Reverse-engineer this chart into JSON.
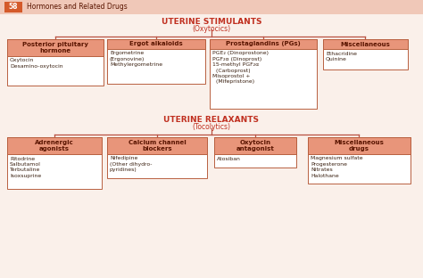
{
  "header_num": "58",
  "header_text": "Hormones and Related Drugs",
  "header_bg": "#f0c8b8",
  "header_num_bg": "#d45a2a",
  "bg_color": "#faf0ea",
  "box_header_bg": "#e8957a",
  "box_border": "#b86040",
  "line_color": "#b85040",
  "text_dark": "#5a1500",
  "text_body": "#3a2010",
  "stimulants_title": "UTERINE STIMULANTS",
  "stimulants_sub": "(Oxytocics)",
  "relaxants_title": "UTERINE RELAXANTS",
  "relaxants_sub": "(Tocolytics)",
  "stim_boxes": [
    {
      "header": "Posterior pituitary\nhormone",
      "body": "Oxytocin\nDesamino-oxytocin"
    },
    {
      "header": "Ergot alkaloids",
      "body": "Ergometrine\n(Ergonovine)\nMethylergometrine"
    },
    {
      "header": "Prostaglandins (PGs)",
      "body": "PGE₂ (Dinoprostone)\nPGF₂α (Dinoprost)\n15-methyl PGF₂α\n  (Carboprost)\nMisoprostol +\n  (Mifepristone)"
    },
    {
      "header": "Miscellaneous",
      "body": "Ethacridine\nQuinine"
    }
  ],
  "relax_boxes": [
    {
      "header": "Adrenergic\nagonists",
      "body": "Ritodrine\nSalbutamol\nTerbutaline\nIsoxsuprine"
    },
    {
      "header": "Calcium channel\nblockers",
      "body": "Nifedipine\n(Other dihydro-\npyridines)"
    },
    {
      "header": "Oxytocin\nantagonist",
      "body": "Atosiban"
    },
    {
      "header": "Miscellaneous\ndrugs",
      "body": "Magnesium sulfate\nProgesterone\nNitrates\nHalothane"
    }
  ]
}
